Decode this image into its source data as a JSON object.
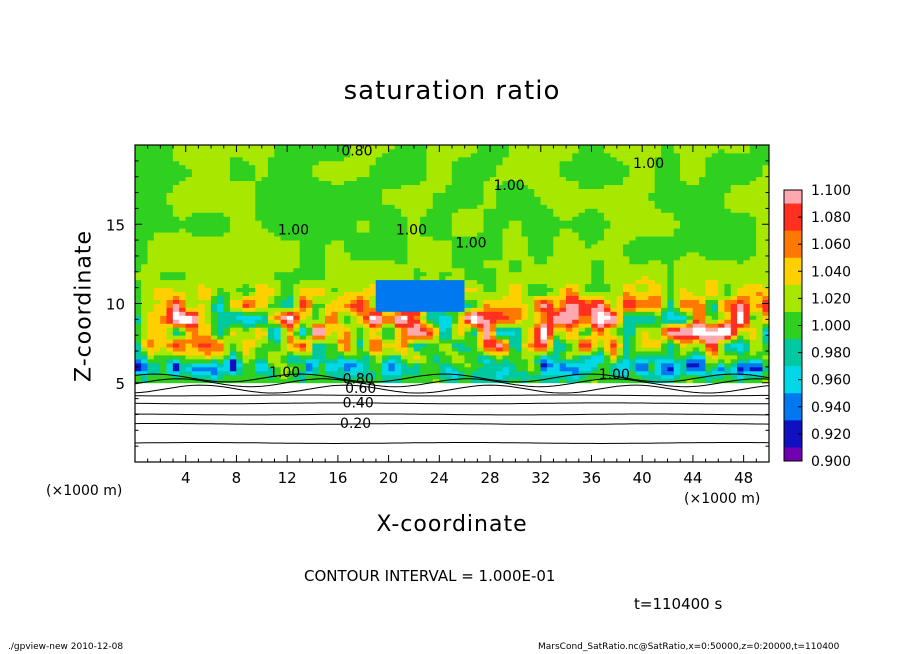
{
  "chart_data": {
    "type": "heatmap",
    "title": "saturation ratio",
    "xlabel": "X-coordinate",
    "ylabel": "Z-coordinate",
    "x_unit": "(×1000 m)",
    "y_unit": "(×1000 m)",
    "xlim": [
      0,
      50
    ],
    "ylim": [
      0,
      20
    ],
    "x_ticks": [
      4,
      8,
      12,
      16,
      20,
      24,
      28,
      32,
      36,
      40,
      44,
      48
    ],
    "y_ticks": [
      5,
      10,
      15
    ],
    "colorbar": {
      "levels": [
        "1.100",
        "1.080",
        "1.060",
        "1.040",
        "1.020",
        "1.000",
        "0.980",
        "0.960",
        "0.940",
        "0.920",
        "0.900"
      ],
      "colors": [
        "#ffa8b0",
        "#ff3020",
        "#ff7800",
        "#ffd000",
        "#a8e800",
        "#30d020",
        "#00c8a0",
        "#00d8e8",
        "#0078f0",
        "#1010c0",
        "#7000b0"
      ]
    },
    "contour_labels": [
      {
        "text": "0.80",
        "x": 17.5,
        "z": 19.6
      },
      {
        "text": "1.00",
        "x": 12.5,
        "z": 14.6
      },
      {
        "text": "1.00",
        "x": 21.8,
        "z": 14.6
      },
      {
        "text": "1.00",
        "x": 26.5,
        "z": 13.8
      },
      {
        "text": "1.00",
        "x": 29.5,
        "z": 17.4
      },
      {
        "text": "1.00",
        "x": 40.5,
        "z": 18.8
      },
      {
        "text": "1.00",
        "x": 11.8,
        "z": 5.6
      },
      {
        "text": "1.00",
        "x": 37.8,
        "z": 5.5
      },
      {
        "text": "0.80",
        "x": 17.6,
        "z": 5.2
      },
      {
        "text": "0.60",
        "x": 17.8,
        "z": 4.6
      },
      {
        "text": "0.40",
        "x": 17.6,
        "z": 3.7
      },
      {
        "text": "0.20",
        "x": 17.4,
        "z": 2.4
      }
    ],
    "contour_interval": "CONTOUR INTERVAL = 1.000E-01",
    "time_label": "t=110400 s"
  },
  "footer": {
    "left": "./gpview-new  2010-12-08",
    "right": "MarsCond_SatRatio.nc@SatRatio,x=0:50000,z=0:20000,t=110400"
  }
}
